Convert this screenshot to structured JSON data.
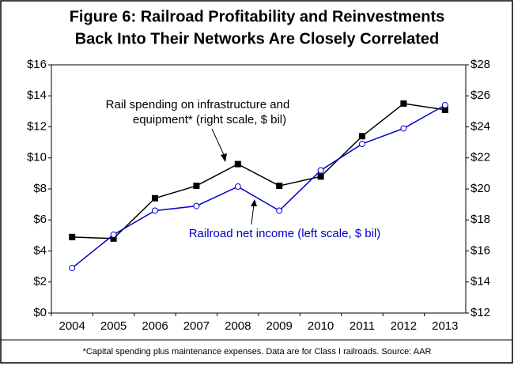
{
  "chart_data": {
    "type": "line",
    "title": [
      "Figure 6:  Railroad Profitability and Reinvestments",
      "Back Into Their Networks Are Closely Correlated"
    ],
    "categories": [
      "2004",
      "2005",
      "2006",
      "2007",
      "2008",
      "2009",
      "2010",
      "2011",
      "2012",
      "2013"
    ],
    "series": [
      {
        "color": "#000000",
        "axis": "y2",
        "marker": "filled-square",
        "values": [
          16.9,
          16.8,
          19.4,
          20.2,
          21.6,
          20.2,
          20.8,
          23.4,
          25.5,
          25.1
        ]
      },
      {
        "color": "#0000cc",
        "axis": "y",
        "marker": "open-circle",
        "values": [
          2.9,
          5.05,
          6.6,
          6.9,
          8.15,
          6.6,
          9.2,
          10.9,
          11.9,
          13.4
        ]
      }
    ],
    "annotations": [
      [
        "Rail spending on infrastructure and",
        "equipment* (right scale, $ bil)"
      ],
      [
        "Railroad net income (left scale, $ bil)"
      ]
    ],
    "ylim": [
      0,
      16
    ],
    "yticks": [
      {
        "value": 0,
        "label": "$0"
      },
      {
        "value": 2,
        "label": "$2"
      },
      {
        "value": 4,
        "label": "$4"
      },
      {
        "value": 6,
        "label": "$6"
      },
      {
        "value": 8,
        "label": "$8"
      },
      {
        "value": 10,
        "label": "$10"
      },
      {
        "value": 12,
        "label": "$12"
      },
      {
        "value": 14,
        "label": "$14"
      },
      {
        "value": 16,
        "label": "$16"
      }
    ],
    "y2lim": [
      12,
      28
    ],
    "y2ticks": [
      {
        "value": 12,
        "label": "$12"
      },
      {
        "value": 14,
        "label": "$14"
      },
      {
        "value": 16,
        "label": "$16"
      },
      {
        "value": 18,
        "label": "$18"
      },
      {
        "value": 20,
        "label": "$20"
      },
      {
        "value": 22,
        "label": "$22"
      },
      {
        "value": 24,
        "label": "$24"
      },
      {
        "value": 26,
        "label": "$26"
      },
      {
        "value": 28,
        "label": "$28"
      }
    ],
    "footnote": "*Capital spending plus maintenance expenses.  Data are for Class I railroads.  Source: AAR"
  }
}
